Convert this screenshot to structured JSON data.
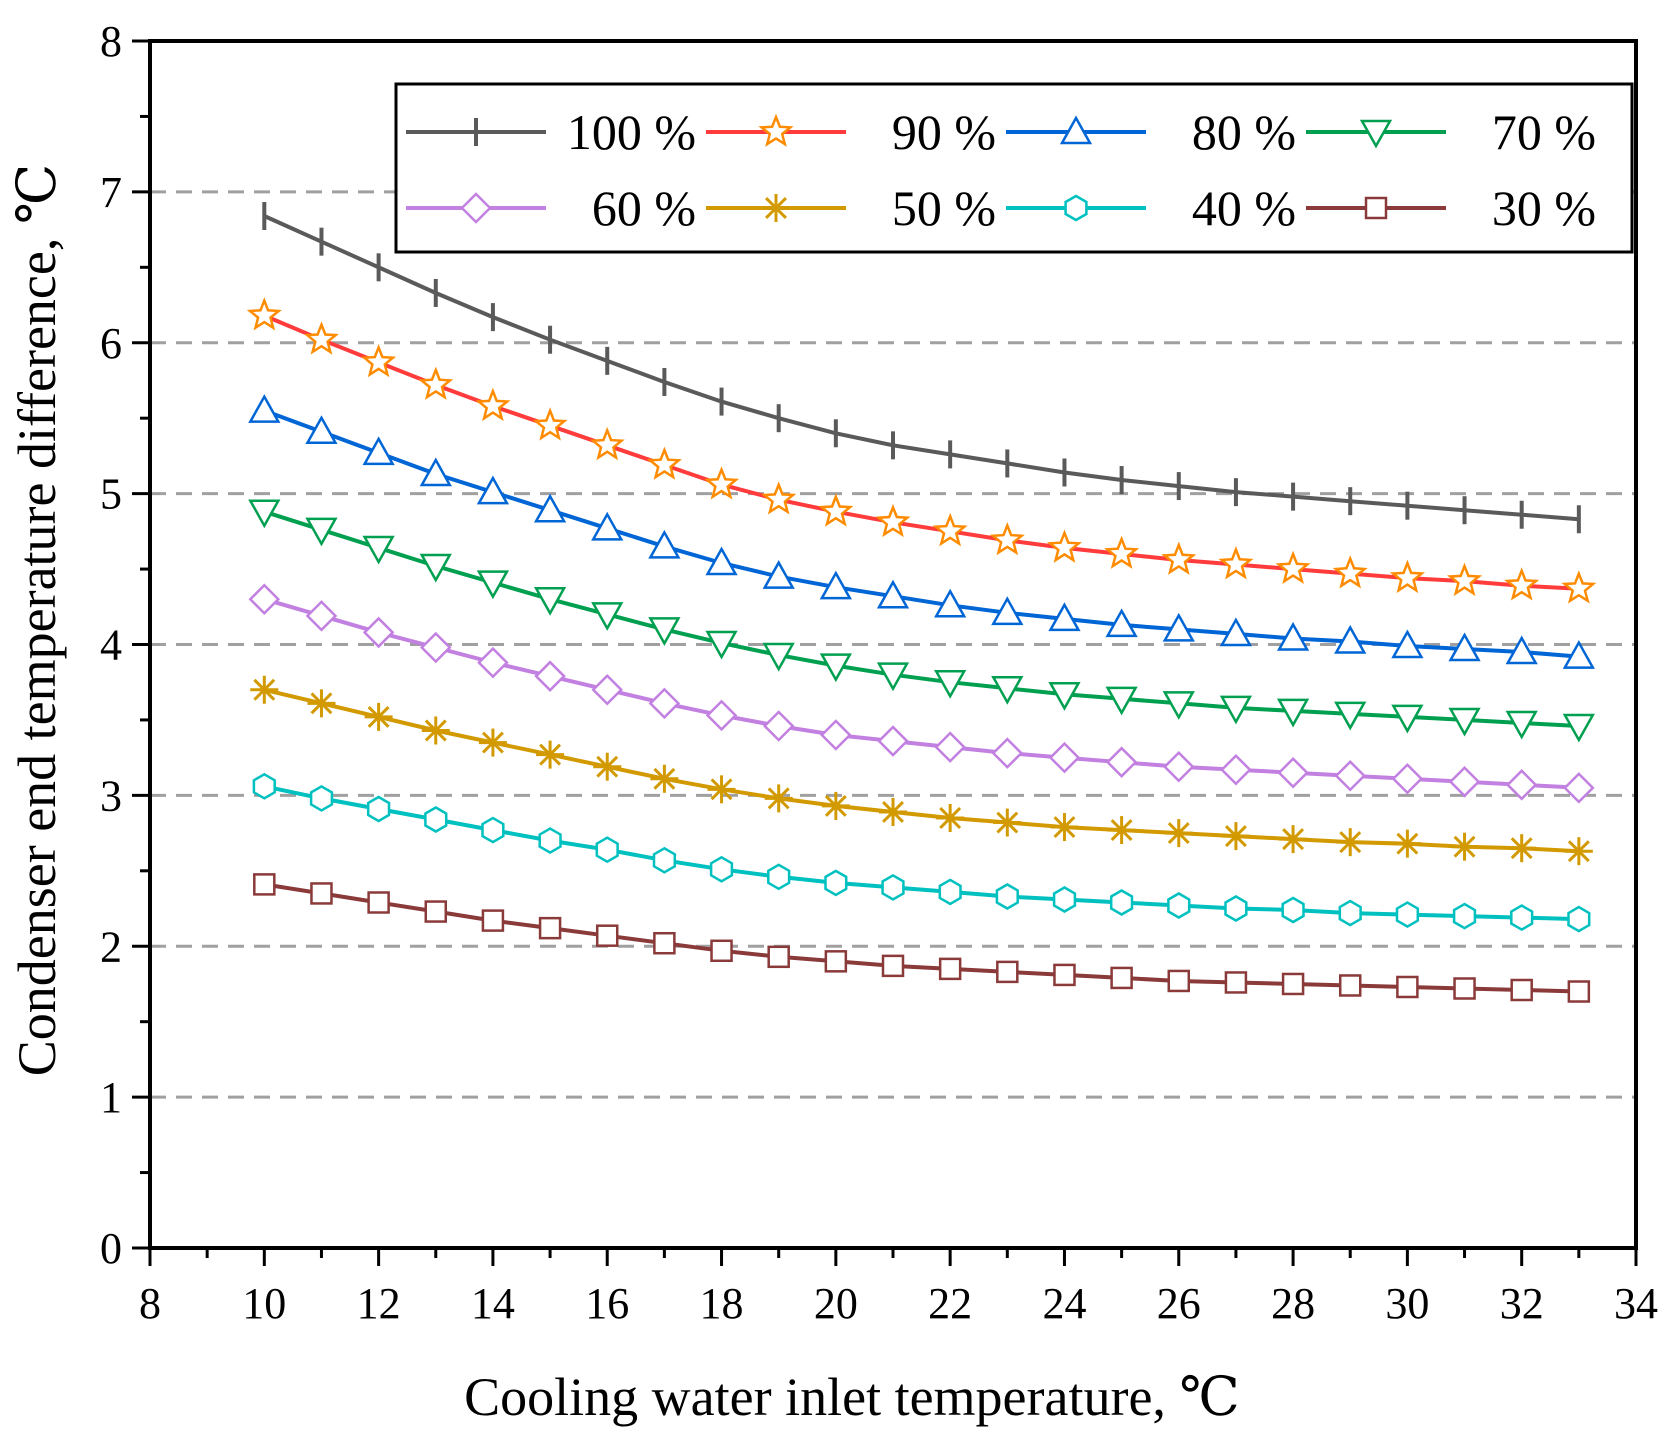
{
  "chart_data": {
    "type": "line",
    "title": "",
    "xlabel": "Cooling water inlet temperature, ℃",
    "ylabel": "Condenser end temperature difference, ℃",
    "xlim": [
      8,
      34
    ],
    "ylim": [
      0,
      8
    ],
    "xticks": [
      8,
      10,
      12,
      14,
      16,
      18,
      20,
      22,
      24,
      26,
      28,
      30,
      32,
      34
    ],
    "yticks": [
      0,
      1,
      2,
      3,
      4,
      5,
      6,
      7,
      8
    ],
    "grid": "horizontal dashed",
    "legend_position": "top-right",
    "x": [
      10,
      11,
      12,
      13,
      14,
      15,
      16,
      17,
      18,
      19,
      20,
      21,
      22,
      23,
      24,
      25,
      26,
      27,
      28,
      29,
      30,
      31,
      32,
      33
    ],
    "series": [
      {
        "name": "100 %",
        "label": "100 %",
        "color": "#5a5a5a",
        "marker": "vline",
        "values": [
          6.84,
          6.67,
          6.5,
          6.33,
          6.17,
          6.02,
          5.88,
          5.74,
          5.61,
          5.5,
          5.4,
          5.32,
          5.26,
          5.2,
          5.14,
          5.09,
          5.05,
          5.01,
          4.98,
          4.95,
          4.92,
          4.89,
          4.86,
          4.83
        ]
      },
      {
        "name": "90 %",
        "label": "90 %",
        "color": "#ff3b3b",
        "marker": "star",
        "marker_color": "#ff8c00",
        "values": [
          6.18,
          6.02,
          5.87,
          5.72,
          5.58,
          5.45,
          5.32,
          5.19,
          5.06,
          4.96,
          4.88,
          4.81,
          4.75,
          4.69,
          4.64,
          4.6,
          4.56,
          4.53,
          4.5,
          4.47,
          4.44,
          4.42,
          4.39,
          4.37
        ]
      },
      {
        "name": "80 %",
        "label": "80 %",
        "color": "#0066d6",
        "marker": "triangle-up",
        "values": [
          5.55,
          5.41,
          5.27,
          5.13,
          5.01,
          4.89,
          4.77,
          4.65,
          4.54,
          4.45,
          4.38,
          4.32,
          4.26,
          4.21,
          4.17,
          4.13,
          4.1,
          4.07,
          4.04,
          4.02,
          3.99,
          3.97,
          3.95,
          3.92
        ]
      },
      {
        "name": "70 %",
        "label": "70 %",
        "color": "#00a050",
        "marker": "triangle-down",
        "values": [
          4.88,
          4.76,
          4.64,
          4.52,
          4.41,
          4.3,
          4.2,
          4.1,
          4.01,
          3.93,
          3.86,
          3.8,
          3.75,
          3.71,
          3.67,
          3.64,
          3.61,
          3.58,
          3.56,
          3.54,
          3.52,
          3.5,
          3.48,
          3.46
        ]
      },
      {
        "name": "60 %",
        "label": "60 %",
        "color": "#c280e0",
        "marker": "diamond",
        "values": [
          4.3,
          4.19,
          4.08,
          3.98,
          3.88,
          3.79,
          3.7,
          3.61,
          3.53,
          3.46,
          3.4,
          3.36,
          3.32,
          3.28,
          3.25,
          3.22,
          3.19,
          3.17,
          3.15,
          3.13,
          3.11,
          3.09,
          3.07,
          3.05
        ]
      },
      {
        "name": "50 %",
        "label": "50 %",
        "color": "#d29a00",
        "marker": "asterisk",
        "values": [
          3.7,
          3.61,
          3.52,
          3.43,
          3.35,
          3.27,
          3.19,
          3.11,
          3.04,
          2.98,
          2.93,
          2.89,
          2.85,
          2.82,
          2.79,
          2.77,
          2.75,
          2.73,
          2.71,
          2.69,
          2.68,
          2.66,
          2.65,
          2.63
        ]
      },
      {
        "name": "40 %",
        "label": "40 %",
        "color": "#00c0c0",
        "marker": "hexagon",
        "values": [
          3.06,
          2.98,
          2.91,
          2.84,
          2.77,
          2.7,
          2.64,
          2.57,
          2.51,
          2.46,
          2.42,
          2.39,
          2.36,
          2.33,
          2.31,
          2.29,
          2.27,
          2.25,
          2.24,
          2.22,
          2.21,
          2.2,
          2.19,
          2.18
        ]
      },
      {
        "name": "30 %",
        "label": " 30 %",
        "color": "#8b3a3a",
        "marker": "square",
        "values": [
          2.41,
          2.35,
          2.29,
          2.23,
          2.17,
          2.12,
          2.07,
          2.02,
          1.97,
          1.93,
          1.9,
          1.87,
          1.85,
          1.83,
          1.81,
          1.79,
          1.77,
          1.76,
          1.75,
          1.74,
          1.73,
          1.72,
          1.71,
          1.7
        ]
      }
    ]
  }
}
